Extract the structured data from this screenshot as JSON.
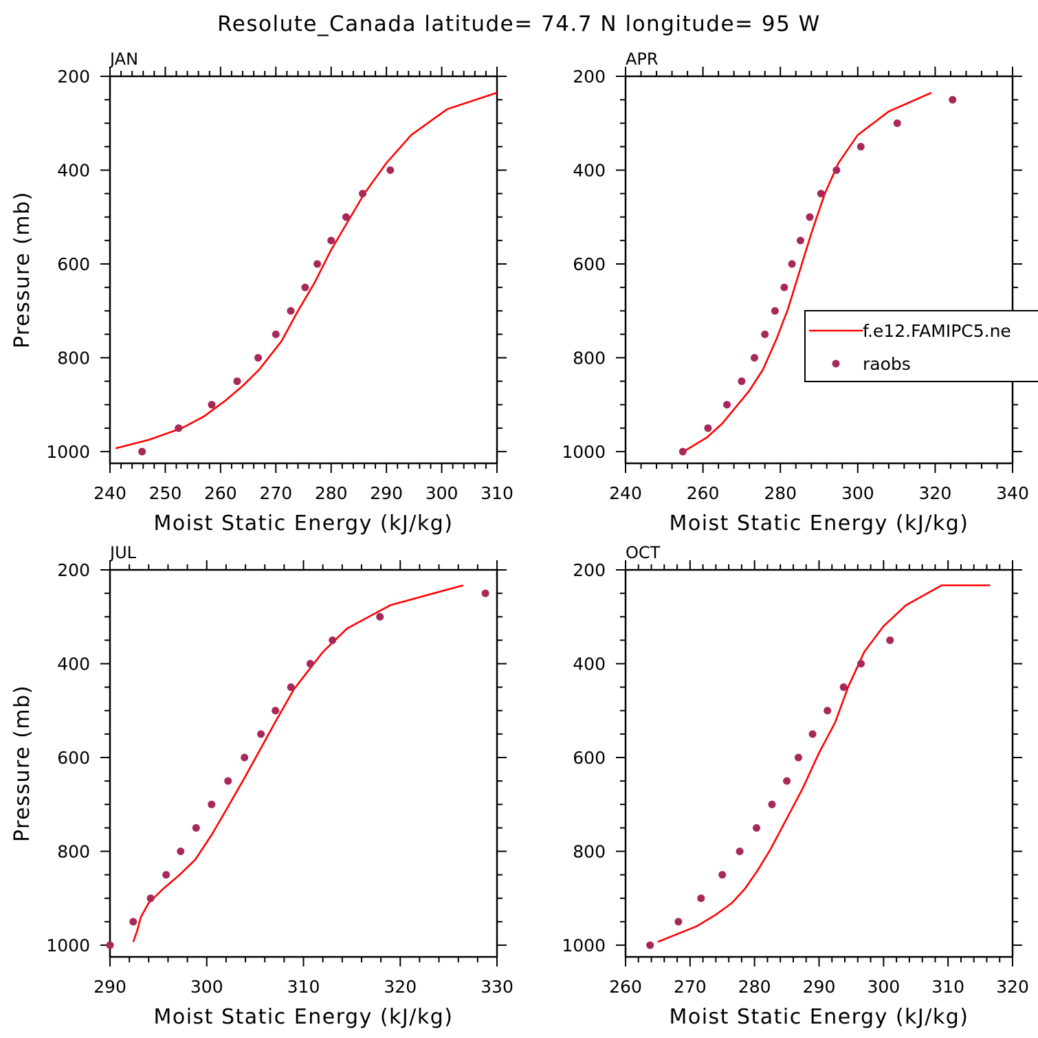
{
  "title": "Resolute_Canada  latitude= 74.7 N longitude= 95 W",
  "colors": {
    "model": "#ff0000",
    "obs": "#a8285a",
    "axes": "#000000"
  },
  "legend": {
    "location": "APR panel, right side",
    "entries": [
      {
        "label": "f.e12.FAMIPC5.ne",
        "style": "line",
        "color": "#ff0000"
      },
      {
        "label": "raobs",
        "style": "marker",
        "color": "#a8285a"
      }
    ]
  },
  "chart_data": [
    {
      "type": "line",
      "panel_title": "JAN",
      "xlabel": "Moist Static Energy (kJ/kg)",
      "ylabel": "Pressure (mb)",
      "xlim": [
        240,
        310
      ],
      "ylim": [
        1025,
        200
      ],
      "xticks": [
        240,
        250,
        260,
        270,
        280,
        290,
        300,
        310
      ],
      "yticks": [
        200,
        400,
        600,
        800,
        1000
      ],
      "series": [
        {
          "name": "f.e12.FAMIPC5.ne",
          "style": "line",
          "x": [
            241,
            247,
            253,
            257,
            261,
            264,
            267,
            271,
            274,
            277,
            280,
            283,
            286,
            290,
            294.5,
            301,
            310
          ],
          "y": [
            993,
            975,
            950,
            925,
            890,
            860,
            825,
            765,
            700,
            640,
            570,
            510,
            450,
            385,
            325,
            270,
            235
          ]
        },
        {
          "name": "raobs",
          "style": "marker",
          "x": [
            245.8,
            252.4,
            258.4,
            263,
            266.8,
            270,
            272.7,
            275.3,
            277.5,
            280,
            282.7,
            285.7,
            290.7
          ],
          "y": [
            1000,
            950,
            900,
            850,
            800,
            750,
            700,
            650,
            600,
            550,
            500,
            450,
            400
          ]
        }
      ]
    },
    {
      "type": "line",
      "panel_title": "APR",
      "xlabel": "Moist Static Energy (kJ/kg)",
      "ylabel": "",
      "xlim": [
        240,
        340
      ],
      "ylim": [
        1025,
        200
      ],
      "xticks": [
        240,
        260,
        280,
        300,
        320,
        340
      ],
      "yticks": [
        200,
        400,
        600,
        800,
        1000
      ],
      "series": [
        {
          "name": "f.e12.FAMIPC5.ne",
          "style": "line",
          "x": [
            255,
            261,
            265,
            268.5,
            272,
            275.5,
            279,
            282,
            285,
            288,
            291.5,
            295,
            300,
            308,
            319
          ],
          "y": [
            1000,
            970,
            940,
            905,
            870,
            825,
            760,
            695,
            615,
            535,
            450,
            385,
            325,
            275,
            235
          ]
        },
        {
          "name": "raobs",
          "style": "marker",
          "x": [
            254.8,
            261.3,
            266.2,
            270,
            273.3,
            276,
            278.6,
            281,
            283,
            285.2,
            287.6,
            290.5,
            294.5,
            300.8,
            310.2,
            324.5
          ],
          "y": [
            1000,
            950,
            900,
            850,
            800,
            750,
            700,
            650,
            600,
            550,
            500,
            450,
            400,
            350,
            300,
            250
          ]
        }
      ]
    },
    {
      "type": "line",
      "panel_title": "JUL",
      "xlabel": "Moist Static Energy (kJ/kg)",
      "ylabel": "Pressure (mb)",
      "xlim": [
        290,
        330
      ],
      "ylim": [
        1025,
        200
      ],
      "xticks": [
        290,
        300,
        310,
        320,
        330
      ],
      "yticks": [
        200,
        400,
        600,
        800,
        1000
      ],
      "series": [
        {
          "name": "f.e12.FAMIPC5.ne",
          "style": "line",
          "x": [
            292.4,
            292.8,
            293.2,
            294,
            295.5,
            297.2,
            298.8,
            300.5,
            302.2,
            304,
            305.6,
            307.2,
            309,
            310.5,
            312,
            314.5,
            319,
            326.5
          ],
          "y": [
            993,
            970,
            940,
            910,
            880,
            850,
            818,
            765,
            705,
            640,
            580,
            520,
            455,
            415,
            375,
            325,
            275,
            233
          ]
        },
        {
          "name": "raobs",
          "style": "marker",
          "x": [
            290,
            292.4,
            294.2,
            295.8,
            297.3,
            298.9,
            300.5,
            302.2,
            303.9,
            305.6,
            307.1,
            308.7,
            310.7,
            313,
            317.9,
            328.8
          ],
          "y": [
            1000,
            950,
            900,
            850,
            800,
            750,
            700,
            650,
            600,
            550,
            500,
            450,
            400,
            350,
            300,
            250
          ]
        }
      ]
    },
    {
      "type": "line",
      "panel_title": "OCT",
      "xlabel": "Moist Static Energy (kJ/kg)",
      "ylabel": "",
      "xlim": [
        260,
        320
      ],
      "ylim": [
        1025,
        200
      ],
      "xticks": [
        260,
        270,
        280,
        290,
        300,
        310,
        320
      ],
      "yticks": [
        200,
        400,
        600,
        800,
        1000
      ],
      "series": [
        {
          "name": "f.e12.FAMIPC5.ne",
          "style": "line",
          "x": [
            265,
            271,
            274,
            276.5,
            278.5,
            280.5,
            282.5,
            285,
            287.5,
            290,
            292.5,
            294.5,
            297,
            300,
            303.5,
            309,
            316.5
          ],
          "y": [
            993,
            960,
            935,
            910,
            880,
            840,
            795,
            730,
            665,
            590,
            525,
            450,
            375,
            320,
            275,
            233,
            233
          ]
        },
        {
          "name": "raobs",
          "style": "marker",
          "x": [
            263.8,
            268.2,
            271.7,
            275,
            277.7,
            280.3,
            282.7,
            285,
            286.8,
            289,
            291.3,
            293.8,
            296.5,
            301
          ],
          "y": [
            1000,
            950,
            900,
            850,
            800,
            750,
            700,
            650,
            600,
            550,
            500,
            450,
            400,
            350
          ]
        }
      ]
    }
  ]
}
